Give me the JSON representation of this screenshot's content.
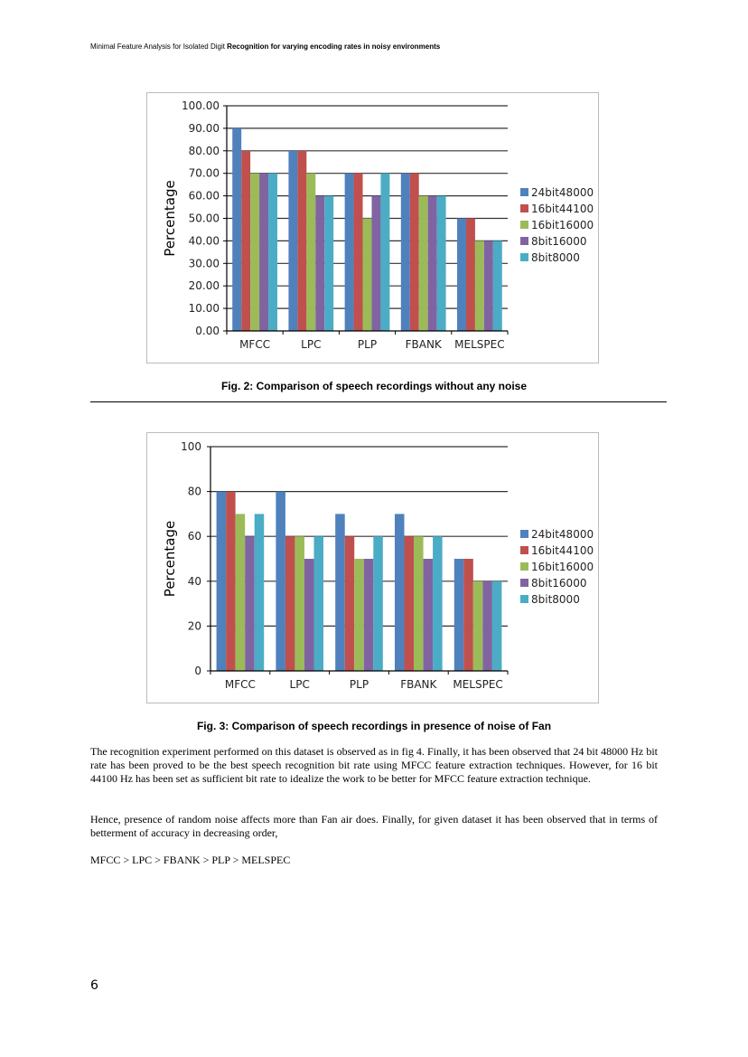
{
  "header": {
    "normal": "Minimal Feature Analysis for Isolated Digit ",
    "bold": "Recognition for varying encoding rates in noisy environments"
  },
  "colors": {
    "24bit48000": "#4f81bd",
    "16bit44100": "#c0504d",
    "16bit16000": "#9bbb59",
    "8bit16000": "#8064a2",
    "8bit8000": "#4bacc6"
  },
  "chart_data": [
    {
      "type": "bar",
      "ylabel": "Percentage",
      "ylim": [
        0,
        100
      ],
      "yticks": [
        "0.00",
        "10.00",
        "20.00",
        "30.00",
        "40.00",
        "50.00",
        "60.00",
        "70.00",
        "80.00",
        "90.00",
        "100.00"
      ],
      "ytick_values": [
        0,
        10,
        20,
        30,
        40,
        50,
        60,
        70,
        80,
        90,
        100
      ],
      "grid": true,
      "legend": "right",
      "categories": [
        "MFCC",
        "LPC",
        "PLP",
        "FBANK",
        "MELSPEC"
      ],
      "series": [
        {
          "name": "24bit48000",
          "values": [
            90,
            80,
            70,
            70,
            50
          ]
        },
        {
          "name": "16bit44100",
          "values": [
            80,
            80,
            70,
            70,
            50
          ]
        },
        {
          "name": "16bit16000",
          "values": [
            70,
            70,
            50,
            60,
            40
          ]
        },
        {
          "name": "8bit16000",
          "values": [
            70,
            60,
            60,
            60,
            40
          ]
        },
        {
          "name": "8bit8000",
          "values": [
            70,
            60,
            70,
            60,
            40
          ]
        }
      ]
    },
    {
      "type": "bar",
      "ylabel": "Percentage",
      "ylim": [
        0,
        100
      ],
      "yticks": [
        "0",
        "20",
        "40",
        "60",
        "80",
        "100"
      ],
      "ytick_values": [
        0,
        20,
        40,
        60,
        80,
        100
      ],
      "grid": true,
      "legend": "right",
      "categories": [
        "MFCC",
        "LPC",
        "PLP",
        "FBANK",
        "MELSPEC"
      ],
      "series": [
        {
          "name": "24bit48000",
          "values": [
            80,
            80,
            70,
            70,
            50
          ]
        },
        {
          "name": "16bit44100",
          "values": [
            80,
            60,
            60,
            60,
            50
          ]
        },
        {
          "name": "16bit16000",
          "values": [
            70,
            60,
            50,
            60,
            40
          ]
        },
        {
          "name": "8bit16000",
          "values": [
            60,
            50,
            50,
            50,
            40
          ]
        },
        {
          "name": "8bit8000",
          "values": [
            70,
            60,
            60,
            60,
            40
          ]
        }
      ]
    }
  ],
  "captions": [
    "Fig. 2: Comparison of speech recordings without any noise",
    "Fig. 3: Comparison of speech recordings in presence of noise of Fan"
  ],
  "paragraphs": [
    "The recognition experiment performed on this dataset is observed as in fig 4. Finally, it has been observed that 24 bit 48000 Hz bit rate has been proved to be the best speech recognition bit rate using MFCC feature extraction techniques. However, for 16 bit 44100 Hz has been set as sufficient bit rate to idealize the work to be better for MFCC feature extraction technique.",
    "Hence, presence of random noise affects more than Fan air does. Finally, for given dataset it has been observed that in terms of betterment of accuracy in decreasing order,",
    "MFCC > LPC > FBANK > PLP > MELSPEC"
  ],
  "page_number": "6"
}
